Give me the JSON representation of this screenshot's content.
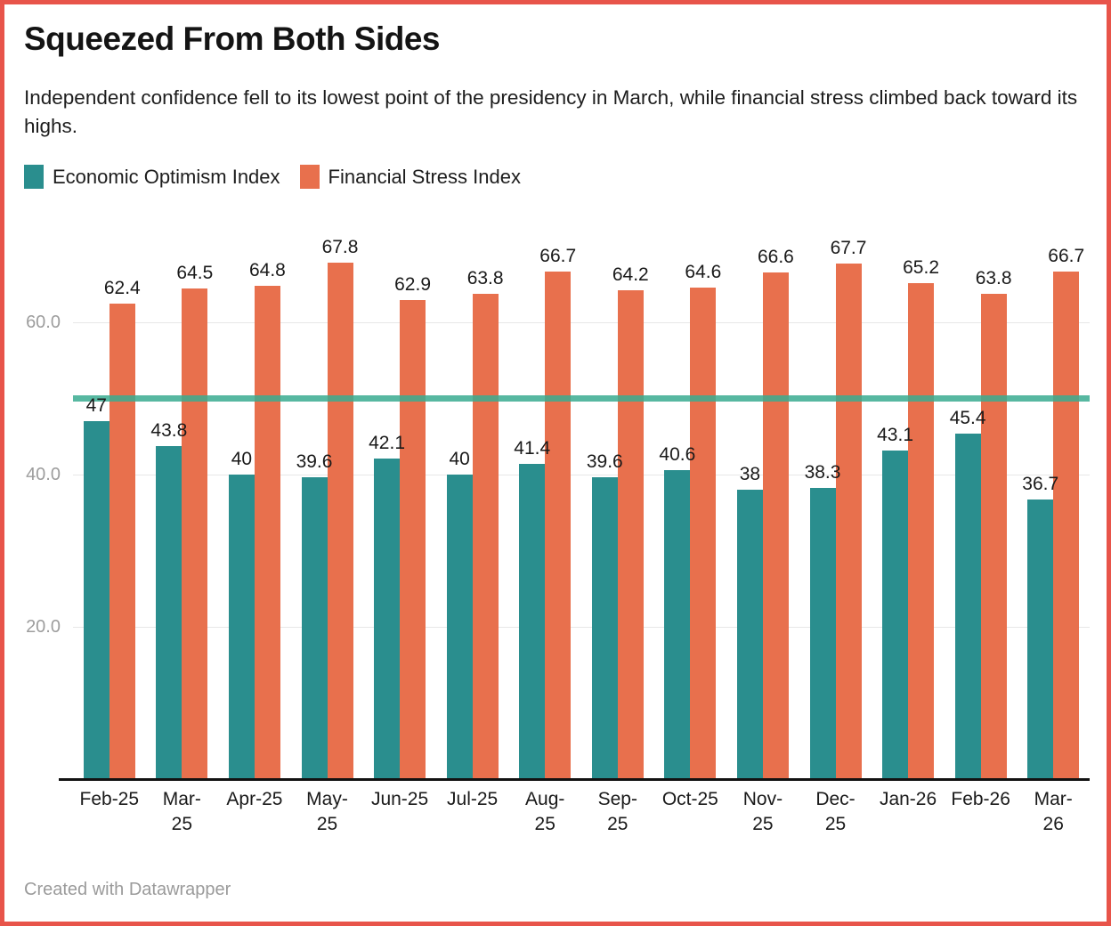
{
  "header": {
    "title": "Squeezed From Both Sides",
    "subtitle": "Independent confidence fell to its lowest point of the presidency in March, while financial stress climbed back toward its highs."
  },
  "legend": {
    "items": [
      {
        "label": "Economic Optimism Index",
        "color": "#2a8e8e"
      },
      {
        "label": "Financial Stress Index",
        "color": "#e8704d"
      }
    ]
  },
  "footer": {
    "credit": "Created with Datawrapper"
  },
  "frame": {
    "border_color": "#e8544a"
  },
  "colors": {
    "optimism_bar": "#2a8e8e",
    "stress_bar": "#e8704d",
    "reference_line": "rgba(58,172,144,0.85)",
    "gridline": "#e7e7e7",
    "axis": "#121212",
    "y_tick_text": "#9d9d9d",
    "value_text": "#1a1a1a"
  },
  "chart_data": {
    "type": "bar",
    "title": "Squeezed From Both Sides",
    "xlabel": "",
    "ylabel": "",
    "grid": "horizontal",
    "legend_position": "top-left",
    "categories": [
      "Feb-25",
      "Mar-25",
      "Apr-25",
      "May-25",
      "Jun-25",
      "Jul-25",
      "Aug-25",
      "Sep-25",
      "Oct-25",
      "Nov-25",
      "Dec-25",
      "Jan-26",
      "Feb-26",
      "Mar-26"
    ],
    "category_label_lines": [
      [
        "Feb-25"
      ],
      [
        "Mar-",
        "25"
      ],
      [
        "Apr-25"
      ],
      [
        "May-",
        "25"
      ],
      [
        "Jun-25"
      ],
      [
        "Jul-25"
      ],
      [
        "Aug-",
        "25"
      ],
      [
        "Sep-",
        "25"
      ],
      [
        "Oct-25"
      ],
      [
        "Nov-",
        "25"
      ],
      [
        "Dec-",
        "25"
      ],
      [
        "Jan-26"
      ],
      [
        "Feb-26"
      ],
      [
        "Mar-",
        "26"
      ]
    ],
    "series": [
      {
        "name": "Economic Optimism Index",
        "color": "#2a8e8e",
        "values": [
          47,
          43.8,
          40,
          39.6,
          42.1,
          40,
          41.4,
          39.6,
          40.6,
          38,
          38.3,
          43.1,
          45.4,
          36.7
        ],
        "labels": [
          "47",
          "43.8",
          "40",
          "39.6",
          "42.1",
          "40",
          "41.4",
          "39.6",
          "40.6",
          "38",
          "38.3",
          "43.1",
          "45.4",
          "36.7"
        ]
      },
      {
        "name": "Financial Stress Index",
        "color": "#e8704d",
        "values": [
          62.4,
          64.5,
          64.8,
          67.8,
          62.9,
          63.8,
          66.7,
          64.2,
          64.6,
          66.6,
          67.7,
          65.2,
          63.8,
          66.7
        ],
        "labels": [
          "62.4",
          "64.5",
          "64.8",
          "67.8",
          "62.9",
          "63.8",
          "66.7",
          "64.2",
          "64.6",
          "66.6",
          "67.7",
          "65.2",
          "63.8",
          "66.7"
        ]
      }
    ],
    "value_labels": true,
    "y_axis": {
      "ticks": [
        {
          "label": "20.0",
          "value": 20
        },
        {
          "label": "40.0",
          "value": 40
        },
        {
          "label": "60.0",
          "value": 60
        }
      ],
      "range": [
        0,
        72
      ]
    },
    "reference_line": {
      "value": 50
    }
  }
}
